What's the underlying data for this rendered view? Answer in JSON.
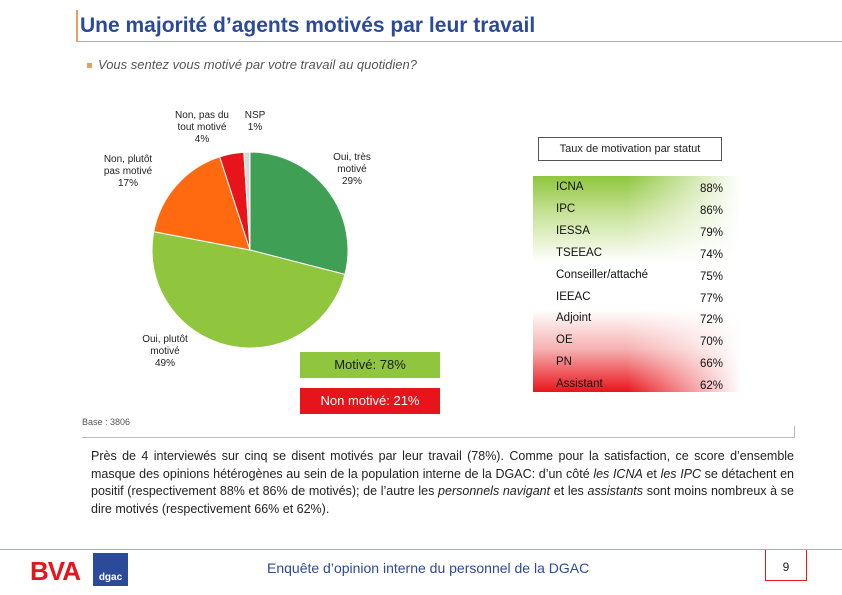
{
  "header": {
    "title": "Une majorité d’agents motivés par leur travail",
    "question": "Vous sentez vous motivé par votre travail au quotidien?"
  },
  "chart_data": [
    {
      "type": "pie",
      "slices": [
        {
          "name": "Oui, très motivé",
          "label_lines": [
            "Oui, très",
            "motivé"
          ],
          "value": 29,
          "value_text": "29%",
          "color": "#3fa055"
        },
        {
          "name": "Oui, plutôt motivé",
          "label_lines": [
            "Oui, plutôt",
            "motivé"
          ],
          "value": 49,
          "value_text": "49%",
          "color": "#8fc63d"
        },
        {
          "name": "Non, plutôt pas motivé",
          "label_lines": [
            "Non, plutôt",
            "pas motivé"
          ],
          "value": 17,
          "value_text": "17%",
          "color": "#ff6a10"
        },
        {
          "name": "Non, pas du tout motivé",
          "label_lines": [
            "Non, pas du",
            "tout motivé"
          ],
          "value": 4,
          "value_text": "4%",
          "color": "#e8141b"
        },
        {
          "name": "NSP",
          "label_lines": [
            "NSP"
          ],
          "value": 1,
          "value_text": "1%",
          "color": "#d9d9d9"
        }
      ],
      "summary": {
        "motive": "Motivé: 78%",
        "non_motive": "Non motivé: 21%"
      }
    },
    {
      "type": "table",
      "title": "Taux de motivation par statut",
      "rows": [
        {
          "name": "ICNA",
          "value": "88%"
        },
        {
          "name": "IPC",
          "value": "86%"
        },
        {
          "name": "IESSA",
          "value": "79%"
        },
        {
          "name": "TSEEAC",
          "value": "74%"
        },
        {
          "name": "Conseiller/attaché",
          "value": "75%"
        },
        {
          "name": "IEEAC",
          "value": "77%"
        },
        {
          "name": "Adjoint",
          "value": "72%"
        },
        {
          "name": "OE",
          "value": "70%"
        },
        {
          "name": "PN",
          "value": "66%"
        },
        {
          "name": "Assistant",
          "value": "62%"
        }
      ]
    }
  ],
  "base": "Base : 3806",
  "comment": {
    "p1": "Près de 4 interviewés sur cinq se disent motivés par leur travail (78%). Comme pour la satisfaction, ce score d’ensemble masque des opinions hétérogènes au sein de la population interne de la DGAC:  d’un côté ",
    "em1": "les ICNA",
    "p2": " et ",
    "em2": "les IPC",
    "p3": " se détachent en positif (respectivement 88% et 86% de motivés); de l’autre les ",
    "em3": "personnels navigant",
    "p4": " et les ",
    "em4": "assistants",
    "p5": " sont moins nombreux à se dire motivés (respectivement 66% et 62%)."
  },
  "footer": {
    "text": "Enquête d’opinion interne du personnel de la DGAC",
    "page": "9",
    "logo_bva": "BVA",
    "logo_dgac": "dgac"
  }
}
